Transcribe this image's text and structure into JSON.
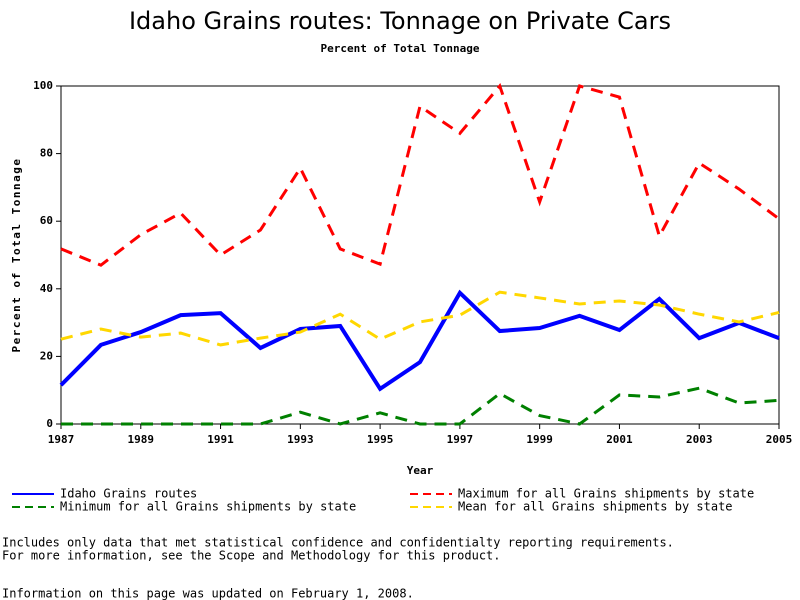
{
  "chart_data": {
    "type": "line",
    "title": "Idaho Grains routes: Tonnage on Private Cars",
    "subtitle": "Percent of Total Tonnage",
    "x_label": "Year",
    "y_label": "Percent of Total Tonnage",
    "x": [
      1987,
      1988,
      1989,
      1990,
      1991,
      1992,
      1993,
      1994,
      1995,
      1996,
      1997,
      1998,
      1999,
      2000,
      2001,
      2002,
      2003,
      2004,
      2005
    ],
    "xlim": [
      1987,
      2005
    ],
    "xticks": [
      1987,
      1989,
      1991,
      1993,
      1995,
      1997,
      1999,
      2001,
      2003,
      2005
    ],
    "ylim": [
      0,
      100
    ],
    "yticks": [
      0,
      20,
      40,
      60,
      80,
      100
    ],
    "series": [
      {
        "name": "Idaho Grains routes",
        "color": "#0000ff",
        "style": "solid",
        "values": [
          11.5,
          23.4,
          27.2,
          32.2,
          32.8,
          22.5,
          28.1,
          29,
          10.4,
          18.3,
          38.8,
          27.5,
          28.4,
          32,
          27.8,
          37,
          25.4,
          29.9,
          25.4
        ]
      },
      {
        "name": "Maximum for all Grains shipments by state",
        "color": "#ff0000",
        "style": "dashed",
        "values": [
          51.8,
          47,
          56,
          62.4,
          50,
          57.4,
          75.7,
          51.8,
          47.3,
          94,
          86,
          100,
          65.7,
          100,
          96.7,
          55.6,
          77.2,
          69.5,
          60.7
        ]
      },
      {
        "name": "Minimum for all Grains shipments by state",
        "color": "#008000",
        "style": "dashed",
        "values": [
          0,
          0,
          0,
          0,
          0,
          0,
          3.5,
          0,
          3.3,
          0,
          0,
          9,
          2.5,
          0,
          8.6,
          8,
          10.6,
          6.2,
          7
        ]
      },
      {
        "name": "Mean for all Grains shipments by state",
        "color": "#ffd700",
        "style": "dashed",
        "values": [
          25.1,
          28.1,
          25.7,
          26.9,
          23.4,
          25.4,
          27.2,
          32.5,
          25.1,
          30.2,
          32.2,
          39,
          37.3,
          35.5,
          36.4,
          35.2,
          32.5,
          30.2,
          33
        ]
      }
    ],
    "notes": [
      "Includes only data that met statistical confidence and confidentialty reporting requirements.",
      "For more information, see the Scope and Methodology for this product.",
      "Information on this page was updated on February 1, 2008."
    ]
  }
}
